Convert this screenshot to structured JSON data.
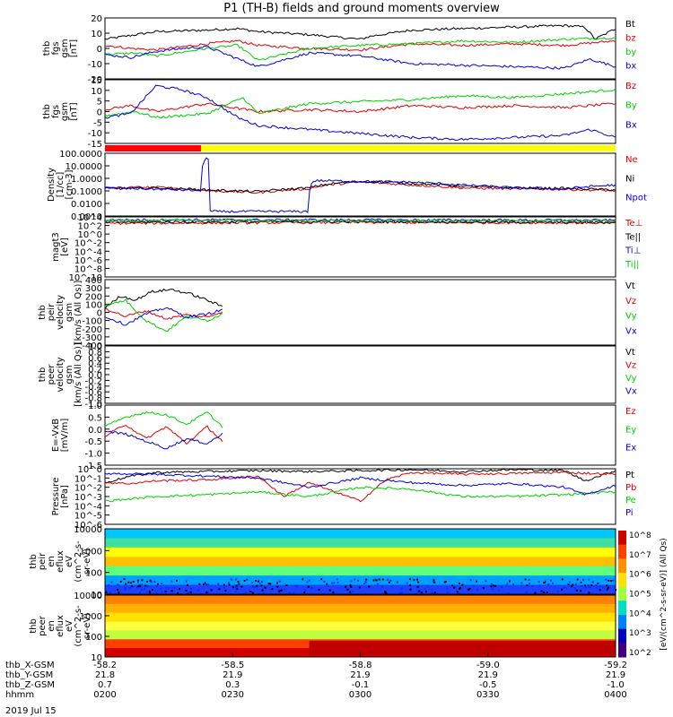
{
  "title": "P1 (TH-B) fields and ground moments overview",
  "colors": {
    "black": "#000000",
    "red": "#e00000",
    "green": "#00d000",
    "blue": "#0000e0"
  },
  "mode_bar": {
    "red_fraction": 0.2,
    "colors": [
      "#ff0000",
      "#ffff00"
    ]
  },
  "chart_data": [
    {
      "type": "line",
      "panel": "fgs-gsm",
      "ylabel": [
        "thb",
        "fgs",
        "gsm",
        "[nT]"
      ],
      "ylim": [
        -20,
        20
      ],
      "yticks": [
        "20",
        "10",
        "0",
        "-10",
        "-20"
      ],
      "series": [
        {
          "name": "Bt",
          "color": "#000000",
          "x": [
            0,
            0.04,
            0.1,
            0.2,
            0.26,
            0.3,
            0.4,
            0.5,
            0.52,
            0.6,
            0.7,
            0.8,
            0.9,
            0.94,
            0.96,
            1
          ],
          "values": [
            6,
            8,
            11,
            12,
            13,
            11,
            9,
            6,
            8,
            12,
            13,
            14,
            15,
            14,
            6,
            13
          ]
        },
        {
          "name": "bz",
          "color": "#e00000",
          "x": [
            0,
            0.05,
            0.1,
            0.2,
            0.26,
            0.3,
            0.4,
            0.5,
            0.6,
            0.7,
            0.8,
            0.9,
            1
          ],
          "values": [
            2,
            0,
            -1,
            3,
            5,
            2,
            0,
            -1,
            3,
            2,
            3,
            2,
            5
          ]
        },
        {
          "name": "by",
          "color": "#00d000",
          "x": [
            0,
            0.06,
            0.1,
            0.2,
            0.26,
            0.3,
            0.4,
            0.5,
            0.6,
            0.7,
            0.8,
            0.9,
            1
          ],
          "values": [
            -4,
            -3,
            -5,
            0,
            2,
            -8,
            0,
            2,
            3,
            5,
            4,
            6,
            7
          ]
        },
        {
          "name": "bx",
          "color": "#0000e0",
          "x": [
            0,
            0.05,
            0.1,
            0.15,
            0.2,
            0.3,
            0.4,
            0.5,
            0.6,
            0.7,
            0.8,
            0.9,
            0.95,
            1
          ],
          "values": [
            -4,
            -6,
            -2,
            0,
            1,
            -12,
            -3,
            -5,
            -10,
            -11,
            -12,
            -13,
            -7,
            -12
          ]
        }
      ]
    },
    {
      "type": "line",
      "panel": "fgs-gsm-B",
      "ylabel": [
        "thb",
        "fgs",
        "gsm",
        "[nT]"
      ],
      "ylim": [
        -17,
        15
      ],
      "yticks": [
        "15",
        "10",
        "5",
        "0",
        "-5",
        "-10",
        "-15"
      ],
      "series": [
        {
          "name": "Bz",
          "color": "#e00000",
          "x": [
            0,
            0.05,
            0.1,
            0.2,
            0.3,
            0.4,
            0.5,
            0.6,
            0.7,
            0.8,
            0.9,
            1
          ],
          "values": [
            0,
            2,
            -1,
            3,
            -1,
            0,
            -1,
            2,
            1,
            2,
            1,
            3
          ]
        },
        {
          "name": "By",
          "color": "#00d000",
          "x": [
            0,
            0.06,
            0.1,
            0.2,
            0.27,
            0.3,
            0.4,
            0.5,
            0.6,
            0.7,
            0.8,
            0.9,
            1
          ],
          "values": [
            -3,
            -1,
            -4,
            -2,
            6,
            -2,
            3,
            4,
            5,
            7,
            6,
            8,
            10
          ]
        },
        {
          "name": "Bx",
          "color": "#0000e0",
          "x": [
            0,
            0.05,
            0.1,
            0.15,
            0.2,
            0.26,
            0.3,
            0.4,
            0.5,
            0.6,
            0.7,
            0.8,
            0.9,
            0.95,
            1
          ],
          "values": [
            -4,
            -2,
            12,
            10,
            6,
            -4,
            -8,
            -10,
            -12,
            -14,
            -15,
            -14,
            -13,
            -10,
            -14
          ]
        }
      ]
    },
    {
      "type": "line",
      "panel": "density",
      "log": true,
      "ylabel": [
        "Density",
        "[1/cc]",
        "[cm-3]"
      ],
      "ylim": [
        0.0001,
        500
      ],
      "yticks": [
        "100.0000",
        "10.0000",
        "1.0000",
        "0.1000",
        "0.0100",
        "0.0010"
      ],
      "series": [
        {
          "name": "Ne",
          "color": "#e00000",
          "x": [
            0,
            0.1,
            0.2,
            0.3,
            0.4,
            0.5,
            0.6,
            0.7,
            0.8,
            0.9,
            1
          ],
          "values": [
            0.1,
            0.12,
            0.05,
            0.03,
            0.08,
            0.4,
            0.2,
            0.1,
            0.08,
            0.07,
            0.05
          ]
        },
        {
          "name": "Ni",
          "color": "#000000",
          "x": [
            0,
            0.1,
            0.2,
            0.3,
            0.4,
            0.5,
            0.6,
            0.7,
            0.8,
            0.9,
            1
          ],
          "values": [
            0.08,
            0.1,
            0.06,
            0.04,
            0.1,
            0.5,
            0.3,
            0.15,
            0.1,
            0.09,
            0.06
          ]
        },
        {
          "name": "Npot",
          "color": "#0000e0",
          "x": [
            0,
            0.19,
            0.2,
            0.205,
            0.4,
            0.41,
            0.6,
            0.7,
            0.8,
            0.9,
            1
          ],
          "values": [
            0.1,
            0.05,
            200,
            0.0003,
            0.0003,
            0.6,
            0.4,
            0.2,
            0.1,
            0.08,
            0.2
          ]
        }
      ]
    },
    {
      "type": "line",
      "panel": "temperature",
      "log": true,
      "ylabel": [
        "magt3",
        "[eV]"
      ],
      "ylim": [
        -10,
        4
      ],
      "yticks": [
        "10^4",
        "10^2",
        "10^0",
        "10^-2",
        "10^-4",
        "10^-6",
        "10^-8",
        "10^-10"
      ],
      "series": [
        {
          "name": "Te⊥",
          "color": "#e00000",
          "x": [
            0,
            0.5,
            1
          ],
          "values": [
            2.5,
            2.7,
            2.6
          ]
        },
        {
          "name": "Te||",
          "color": "#000000",
          "x": [
            0,
            0.5,
            1
          ],
          "values": [
            2.8,
            2.9,
            2.7
          ]
        },
        {
          "name": "Ti⊥",
          "color": "#0000e0",
          "x": [
            0,
            0.5,
            1
          ],
          "values": [
            3.3,
            3.3,
            3.2
          ]
        },
        {
          "name": "Ti||",
          "color": "#00d000",
          "x": [
            0,
            0.5,
            1
          ],
          "values": [
            3.2,
            3.1,
            3.1
          ]
        }
      ]
    },
    {
      "type": "line",
      "panel": "peir-velocity",
      "ylabel": [
        "thb",
        "peir",
        "velocity",
        "gsm",
        "[km/s (All Qs)]"
      ],
      "ylim": [
        -400,
        400
      ],
      "yticks": [
        "400",
        "300",
        "200",
        "100",
        "0",
        "-100",
        "-200",
        "-300",
        "-400"
      ],
      "series": [
        {
          "name": "Vt",
          "color": "#000000",
          "x": [
            0,
            0.03,
            0.06,
            0.09,
            0.13,
            0.17,
            0.2,
            0.23
          ],
          "values": [
            50,
            200,
            150,
            250,
            280,
            220,
            150,
            70
          ]
        },
        {
          "name": "Vz",
          "color": "#e00000",
          "x": [
            0,
            0.04,
            0.08,
            0.12,
            0.16,
            0.2,
            0.23
          ],
          "values": [
            50,
            -50,
            20,
            -80,
            -30,
            -60,
            10
          ]
        },
        {
          "name": "Vy",
          "color": "#00d000",
          "x": [
            0,
            0.04,
            0.08,
            0.12,
            0.16,
            0.2,
            0.23
          ],
          "values": [
            80,
            150,
            -100,
            -230,
            -50,
            -100,
            -20
          ]
        },
        {
          "name": "Vx",
          "color": "#0000e0",
          "x": [
            0,
            0.04,
            0.08,
            0.12,
            0.16,
            0.2,
            0.23
          ],
          "values": [
            -50,
            -150,
            -20,
            60,
            -60,
            -20,
            30
          ]
        }
      ]
    },
    {
      "type": "line",
      "panel": "peer-velocity",
      "ylabel": [
        "thb",
        "peer",
        "velocity",
        "gsm",
        "[km/s (All Qs)]"
      ],
      "ylim": [
        -1,
        1
      ],
      "yticks": [
        "1.0",
        "0.8",
        "0.6",
        "0.4",
        "0.2",
        "0.0",
        "-0.2",
        "-0.4",
        "-0.6",
        "-0.8",
        "-1.0"
      ],
      "series": [
        {
          "name": "Vt",
          "color": "#000000",
          "x": [],
          "values": []
        },
        {
          "name": "Vz",
          "color": "#e00000",
          "x": [],
          "values": []
        },
        {
          "name": "Vy",
          "color": "#00d000",
          "x": [],
          "values": []
        },
        {
          "name": "Vx",
          "color": "#0000e0",
          "x": [],
          "values": []
        }
      ]
    },
    {
      "type": "line",
      "panel": "efield",
      "ylabel": [
        "E=-VxB",
        "[mV/m]"
      ],
      "ylim": [
        -1.5,
        1
      ],
      "yticks": [
        "1.0",
        "0.5",
        "0.0",
        "-0.5",
        "-1.0",
        "-1.5"
      ],
      "series": [
        {
          "name": "Ez",
          "color": "#e00000",
          "x": [
            0,
            0.04,
            0.08,
            0.12,
            0.16,
            0.2,
            0.23
          ],
          "values": [
            -0.3,
            0.2,
            -0.4,
            0.1,
            -0.6,
            0.1,
            -0.5
          ]
        },
        {
          "name": "Ey",
          "color": "#00d000",
          "x": [
            0,
            0.04,
            0.08,
            0.12,
            0.16,
            0.2,
            0.23
          ],
          "values": [
            0.1,
            0.5,
            0.7,
            0.6,
            0.2,
            0.7,
            0.1
          ]
        },
        {
          "name": "Ex",
          "color": "#0000e0",
          "x": [
            0,
            0.04,
            0.08,
            0.12,
            0.16,
            0.2,
            0.23
          ],
          "values": [
            -0.1,
            -0.2,
            -0.5,
            -0.8,
            -0.4,
            -0.6,
            -0.2
          ]
        }
      ]
    },
    {
      "type": "line",
      "panel": "pressure",
      "log": true,
      "ylabel": [
        "Pressure",
        "[nPa]"
      ],
      "ylim": [
        -6,
        0
      ],
      "yticks": [
        "10^0",
        "10^-1",
        "10^-2",
        "10^-3",
        "10^-4",
        "10^-5",
        "10^-6"
      ],
      "series": [
        {
          "name": "Pt",
          "color": "#000000",
          "x": [
            0,
            0.05,
            0.1,
            0.2,
            0.3,
            0.4,
            0.5,
            0.6,
            0.7,
            0.8,
            0.9,
            0.94,
            1
          ],
          "values": [
            -1.5,
            -0.8,
            -0.4,
            -0.3,
            -0.2,
            -0.3,
            -0.2,
            -0.1,
            -0.3,
            -0.1,
            -0.2,
            -1.3,
            -0.2
          ]
        },
        {
          "name": "Pb",
          "color": "#e00000",
          "x": [
            0,
            0.05,
            0.1,
            0.2,
            0.3,
            0.35,
            0.4,
            0.5,
            0.55,
            0.6,
            0.7,
            0.8,
            0.9,
            1
          ],
          "values": [
            -1.5,
            -1.6,
            -1.3,
            -1.2,
            -0.8,
            -3,
            -1.5,
            -3.5,
            -1.2,
            -0.4,
            -0.6,
            -0.5,
            -0.4,
            -0.6
          ]
        },
        {
          "name": "Pe",
          "color": "#00d000",
          "x": [
            0,
            0.1,
            0.2,
            0.3,
            0.4,
            0.5,
            0.6,
            0.7,
            0.8,
            0.9,
            1
          ],
          "values": [
            -3.5,
            -3,
            -2.8,
            -2.5,
            -3,
            -2,
            -2.2,
            -3,
            -3,
            -2.8,
            -2.5
          ]
        },
        {
          "name": "Pi",
          "color": "#0000e0",
          "x": [
            0,
            0.1,
            0.2,
            0.3,
            0.4,
            0.5,
            0.6,
            0.7,
            0.8,
            0.9,
            0.94,
            1
          ],
          "values": [
            -0.5,
            -0.6,
            -0.8,
            -1,
            -2,
            -1,
            -1.5,
            -1.8,
            -1.6,
            -2,
            -2.8,
            -1.8
          ]
        }
      ]
    },
    {
      "type": "heatmap",
      "panel": "peir-spectrogram",
      "ylabel": [
        "thb",
        "peir",
        "en",
        "eflux",
        "eV",
        "(cm^2-s-",
        "sr-eV)"
      ],
      "yticks": [
        "10000",
        "1000",
        "100",
        "10"
      ],
      "colorbar": {
        "ticks": [
          "10^8",
          "10^7",
          "10^6",
          "10^5",
          "10^4",
          "10^3",
          "10^2"
        ]
      }
    },
    {
      "type": "heatmap",
      "panel": "peer-spectrogram",
      "ylabel": [
        "thb",
        "peer",
        "en",
        "eflux",
        "eV",
        "(cm^2-s-",
        "sr-eV)"
      ],
      "yticks": [
        "10000",
        "1000",
        "100",
        "10"
      ],
      "colorbar": {
        "ticks": [
          "10^8",
          "10^7",
          "10^6",
          "10^5",
          "10^4",
          "10^3",
          "10^2"
        ]
      }
    }
  ],
  "colorbar_title": "[eV/(cm^2-s-sr-eV)] (All Qs)",
  "xaxis": {
    "ticks": [
      {
        "row": [
          "-58.2",
          "21.8",
          "0.7",
          "0200"
        ]
      },
      {
        "row": [
          "-58.5",
          "21.9",
          "0.3",
          "0230"
        ]
      },
      {
        "row": [
          "-58.8",
          "21.9",
          "-0.1",
          "0300"
        ]
      },
      {
        "row": [
          "-59.0",
          "21.9",
          "-0.5",
          "0330"
        ]
      },
      {
        "row": [
          "-59.2",
          "21.9",
          "-1.0",
          "0400"
        ]
      }
    ],
    "row_labels": [
      "thb_X-GSM",
      "thb_Y-GSM",
      "thb_Z-GSM",
      "hhmm"
    ],
    "date": "2019 Jul 15"
  }
}
